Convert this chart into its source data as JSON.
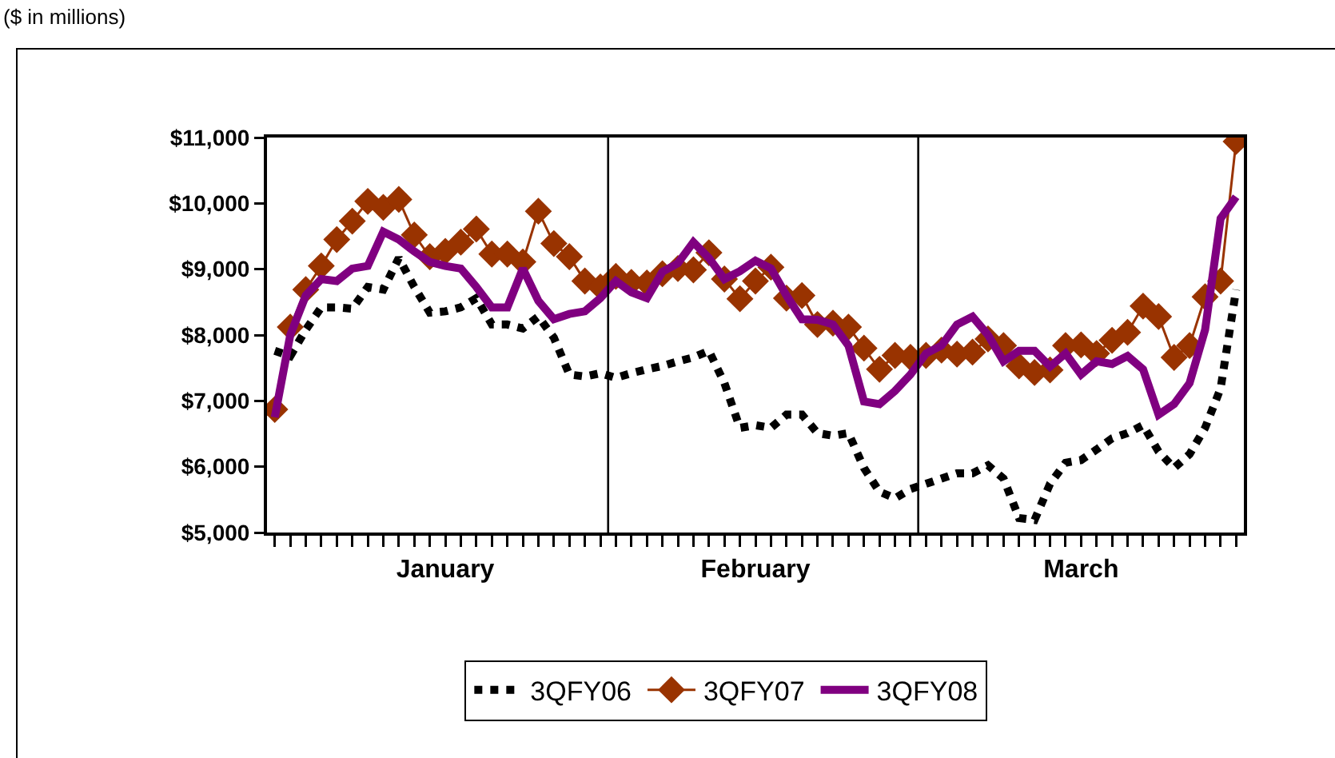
{
  "chart_data": {
    "type": "line",
    "annotations": [
      "($ in millions)"
    ],
    "categories": [
      null,
      null,
      null,
      null,
      null,
      null,
      null,
      null,
      null,
      null,
      null,
      "January",
      null,
      null,
      null,
      null,
      null,
      null,
      null,
      null,
      null,
      null,
      null,
      null,
      null,
      null,
      null,
      null,
      null,
      null,
      null,
      "February",
      null,
      null,
      null,
      null,
      null,
      null,
      null,
      null,
      null,
      null,
      null,
      null,
      null,
      null,
      null,
      null,
      null,
      null,
      null,
      null,
      "March",
      null,
      null,
      null,
      null,
      null,
      null,
      null,
      null,
      null,
      null
    ],
    "ylim": [
      5000,
      11000
    ],
    "yticks": [
      {
        "value": 5000,
        "label": "$5,000"
      },
      {
        "value": 6000,
        "label": "$6,000"
      },
      {
        "value": 7000,
        "label": "$7,000"
      },
      {
        "value": 8000,
        "label": "$8,000"
      },
      {
        "value": 9000,
        "label": "$9,000"
      },
      {
        "value": 10000,
        "label": "$10,000"
      },
      {
        "value": 11000,
        "label": "$11,000"
      }
    ],
    "grid": false,
    "legend": "bottom",
    "marker": "none",
    "series": [
      {
        "name": "3QFY06",
        "color": "#000000",
        "line_style": "dotted",
        "values": [
          7760,
          7680,
          8080,
          8420,
          8420,
          8400,
          8730,
          8690,
          9170,
          8730,
          8340,
          8360,
          8420,
          8560,
          8160,
          8160,
          8100,
          8280,
          7960,
          7400,
          7370,
          7420,
          7350,
          7420,
          7480,
          7530,
          7600,
          7660,
          7760,
          7270,
          6590,
          6630,
          6590,
          6790,
          6790,
          6510,
          6470,
          6510,
          5980,
          5620,
          5520,
          5660,
          5740,
          5820,
          5900,
          5900,
          6020,
          5820,
          5220,
          5190,
          5740,
          6060,
          6100,
          6260,
          6430,
          6510,
          6630,
          6230,
          5980,
          6190,
          6590,
          7190,
          8690
        ]
      },
      {
        "name": "3QFY07",
        "color": "#993300",
        "marker": "diamond",
        "values": [
          6870,
          8120,
          8690,
          9050,
          9450,
          9730,
          10030,
          9940,
          10060,
          9520,
          9190,
          9270,
          9410,
          9610,
          9230,
          9230,
          9110,
          9880,
          9390,
          9190,
          8820,
          8730,
          8890,
          8800,
          8790,
          8930,
          9010,
          8990,
          9250,
          8850,
          8550,
          8820,
          9030,
          8560,
          8600,
          8160,
          8180,
          8120,
          7800,
          7480,
          7690,
          7660,
          7690,
          7770,
          7710,
          7740,
          7940,
          7840,
          7530,
          7430,
          7470,
          7840,
          7850,
          7720,
          7920,
          8040,
          8440,
          8280,
          7660,
          7840,
          8580,
          8820,
          10940
        ]
      },
      {
        "name": "3QFY08",
        "color": "#800080",
        "values": [
          6750,
          8000,
          8600,
          8850,
          8820,
          9010,
          9050,
          9570,
          9450,
          9270,
          9110,
          9050,
          9010,
          8730,
          8420,
          8420,
          9010,
          8520,
          8240,
          8320,
          8360,
          8560,
          8820,
          8650,
          8560,
          8960,
          9090,
          9410,
          9170,
          8850,
          8970,
          9130,
          9010,
          8600,
          8240,
          8230,
          8160,
          7840,
          6990,
          6950,
          7150,
          7400,
          7720,
          7840,
          8160,
          8280,
          8000,
          7600,
          7760,
          7760,
          7520,
          7720,
          7400,
          7600,
          7560,
          7680,
          7480,
          6790,
          6950,
          7270,
          8080,
          9770,
          10100
        ]
      }
    ]
  }
}
